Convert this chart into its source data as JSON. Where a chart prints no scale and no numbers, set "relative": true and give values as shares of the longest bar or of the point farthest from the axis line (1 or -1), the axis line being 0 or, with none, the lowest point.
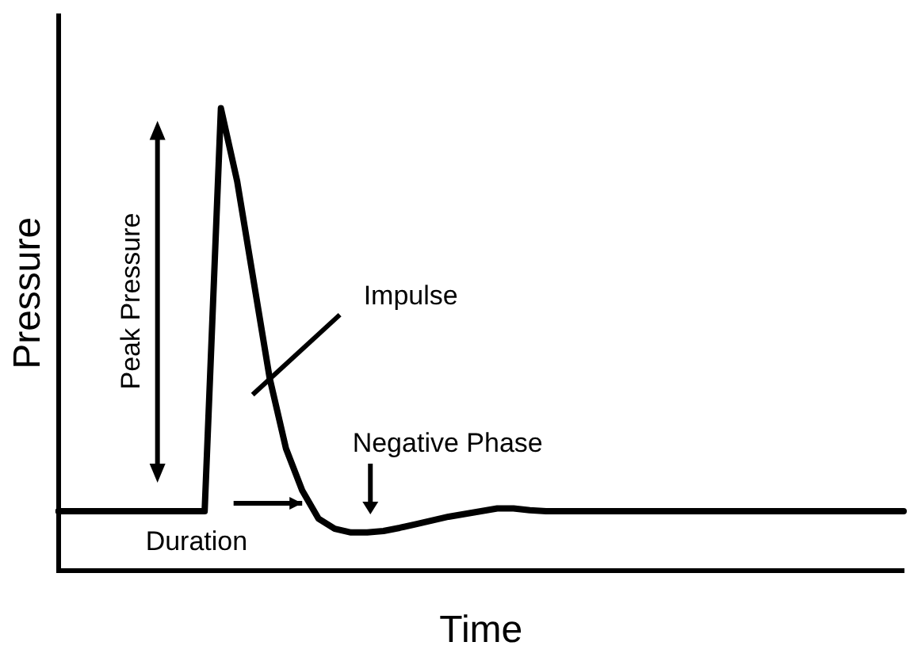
{
  "chart_data": {
    "type": "line",
    "relative": true,
    "xlabel": "Time",
    "ylabel": "Pressure",
    "color": "#000000",
    "marker": "none",
    "line_style": "solid",
    "grid": false,
    "legend": false,
    "categories": [
      null,
      null,
      null,
      null,
      null,
      null,
      null,
      null,
      null,
      null,
      null,
      null,
      null,
      null,
      null,
      null,
      null,
      null,
      null,
      null,
      null,
      null,
      null,
      null,
      null,
      null,
      null,
      null,
      null,
      null,
      null,
      null,
      null,
      null,
      null,
      null,
      null,
      null,
      null,
      null,
      null,
      null,
      null,
      null,
      null,
      null,
      null,
      null,
      null,
      null,
      null,
      null,
      null
    ],
    "values": [
      0.128,
      0.128,
      0.128,
      0.128,
      0.128,
      0.128,
      0.128,
      0.128,
      0.128,
      0.128,
      1,
      0.842,
      0.629,
      0.416,
      0.264,
      0.173,
      0.112,
      0.09,
      0.082,
      0.082,
      0.085,
      0.092,
      0.1,
      0.108,
      0.116,
      0.122,
      0.128,
      0.134,
      0.134,
      0.13,
      0.128,
      0.128,
      0.128,
      0.128,
      0.128,
      0.128,
      0.128,
      0.128,
      0.128,
      0.128,
      0.128,
      0.128,
      0.128,
      0.128,
      0.128,
      0.128,
      0.128,
      0.128,
      0.128,
      0.128,
      0.128,
      0.128,
      0.128
    ],
    "annotations": [
      "Peak Pressure",
      "Impulse",
      "Negative Phase",
      "Duration"
    ]
  }
}
